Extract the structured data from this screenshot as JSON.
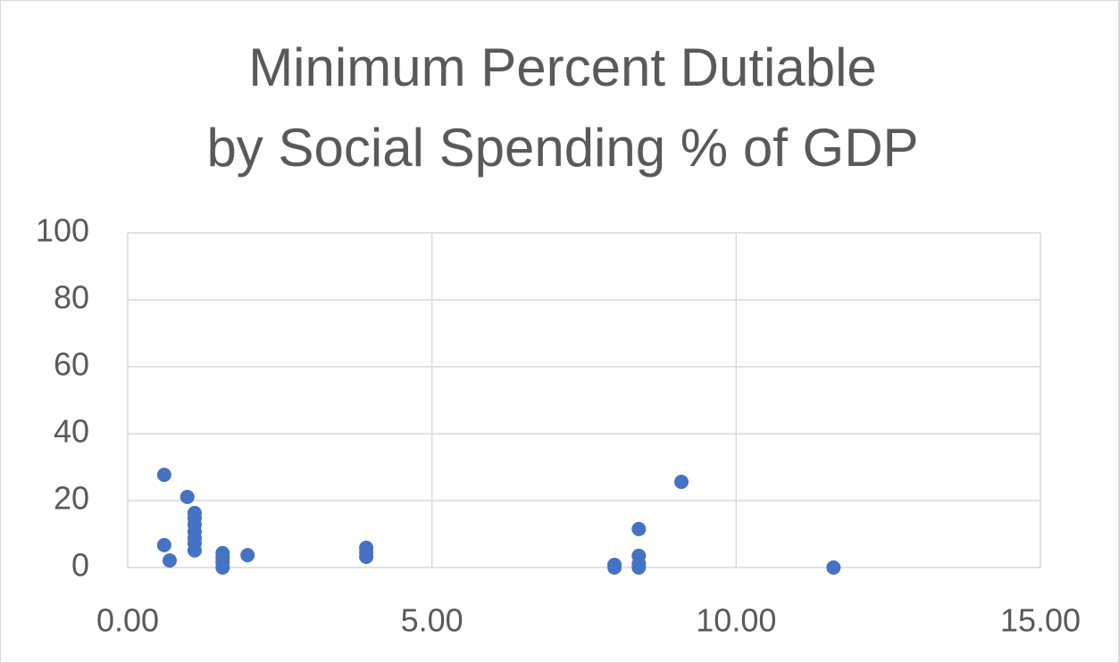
{
  "chart_data": {
    "type": "scatter",
    "title": [
      "Minimum Percent Dutiable",
      "by Social Spending % of GDP"
    ],
    "series": [
      {
        "color": "#4472c4",
        "x": [
          0.6,
          0.6,
          0.69,
          0.98,
          1.1,
          1.1,
          1.1,
          1.1,
          1.1,
          1.1,
          1.1,
          1.56,
          1.56,
          1.56,
          1.56,
          1.97,
          3.92,
          3.92,
          3.92,
          8.0,
          8.0,
          8.4,
          8.4,
          8.4,
          8.4,
          9.1,
          11.6
        ],
        "values": [
          27.7,
          6.7,
          2.1,
          21.1,
          16.3,
          14.7,
          12.8,
          10.7,
          8.8,
          7.2,
          5.1,
          4.3,
          2.9,
          1.6,
          0,
          3.7,
          5.9,
          4.5,
          3.2,
          0.8,
          0,
          11.5,
          3.5,
          1.1,
          0,
          25.6,
          0
        ]
      }
    ],
    "xlim": [
      0,
      15
    ],
    "xticks": [
      {
        "value": 0,
        "label": "0.00"
      },
      {
        "value": 5,
        "label": "5.00"
      },
      {
        "value": 10,
        "label": "10.00"
      },
      {
        "value": 15,
        "label": "15.00"
      }
    ],
    "ylim": [
      0,
      100
    ],
    "yticks": [
      0,
      20,
      40,
      60,
      80,
      100
    ],
    "grid": true
  }
}
